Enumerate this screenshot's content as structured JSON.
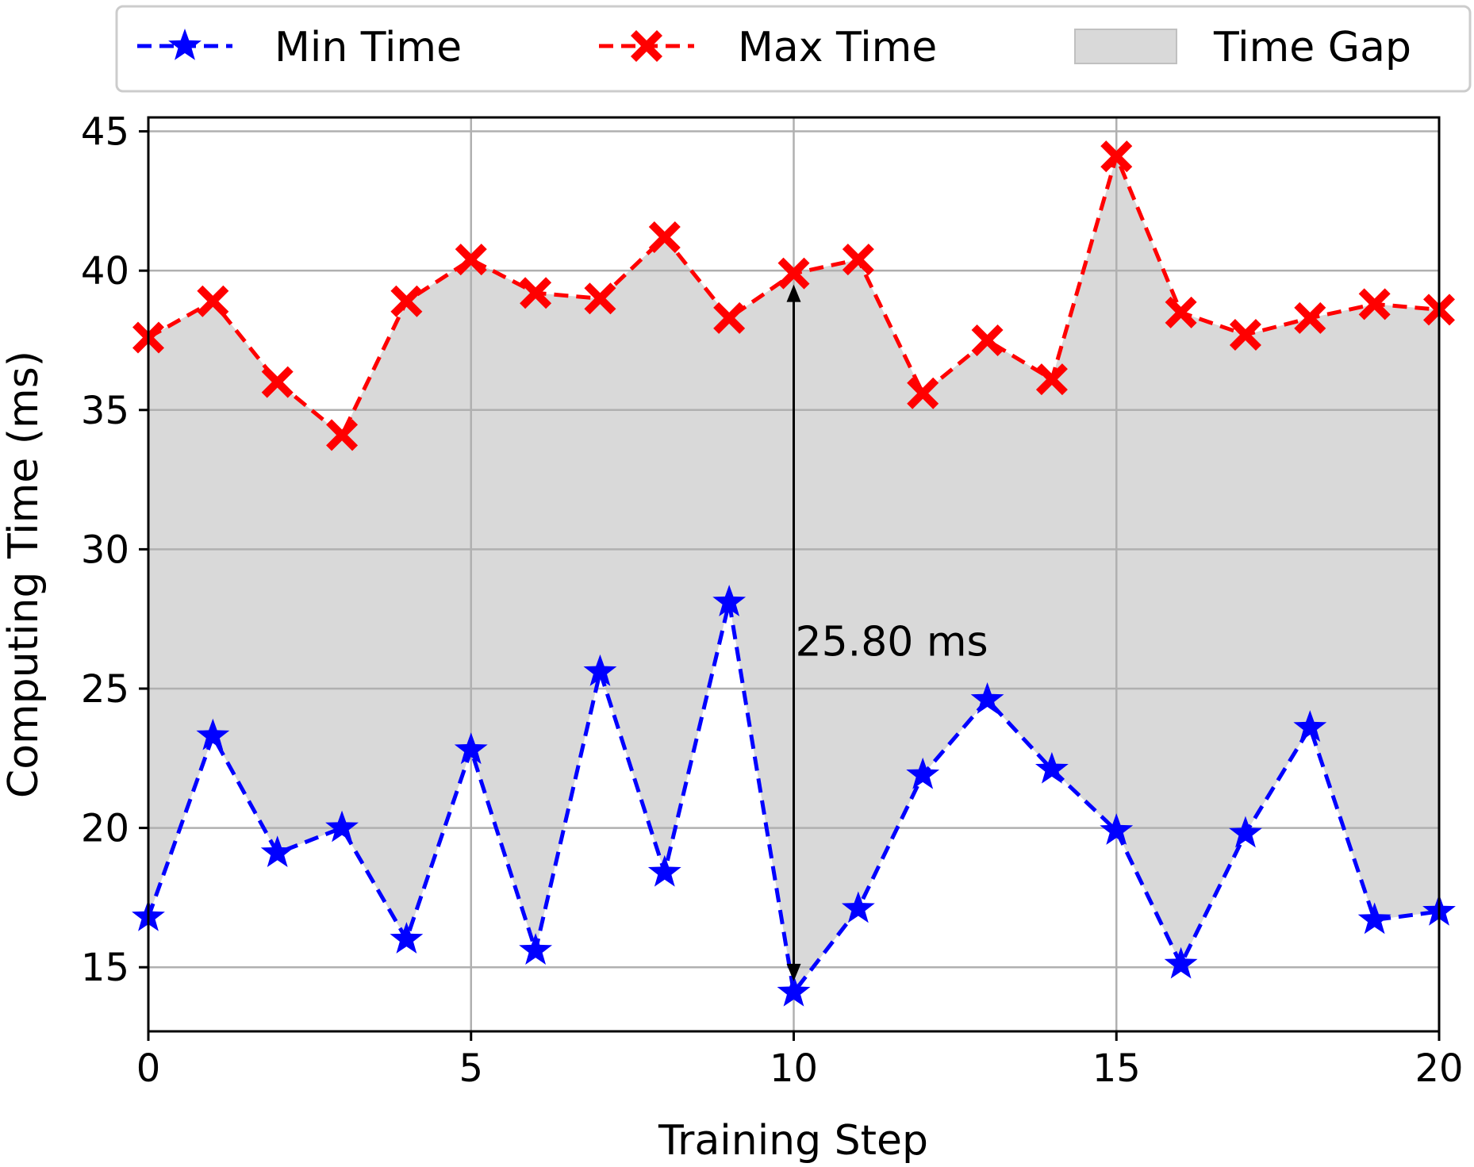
{
  "chart_data": {
    "type": "line",
    "title": "",
    "xlabel": "Training Step",
    "ylabel": "Computing Time (ms)",
    "xlim": [
      0,
      20
    ],
    "ylim": [
      12.7,
      45.5
    ],
    "xticks": [
      0,
      5,
      10,
      15,
      20
    ],
    "yticks": [
      15,
      20,
      25,
      30,
      35,
      40,
      45
    ],
    "grid": true,
    "legend_position": "top",
    "x": [
      0,
      1,
      2,
      3,
      4,
      5,
      6,
      7,
      8,
      9,
      10,
      11,
      12,
      13,
      14,
      15,
      16,
      17,
      18,
      19,
      20
    ],
    "series": [
      {
        "name": "Min Time",
        "color": "#0000ff",
        "marker": "star",
        "line_style": "dashed",
        "values": [
          16.8,
          23.3,
          19.1,
          20.0,
          16.0,
          22.8,
          15.6,
          25.6,
          18.4,
          28.1,
          14.1,
          17.1,
          21.9,
          24.6,
          22.1,
          19.9,
          15.1,
          19.8,
          23.6,
          16.7,
          17.0
        ]
      },
      {
        "name": "Max Time",
        "color": "#ff0000",
        "marker": "x",
        "line_style": "dashed",
        "values": [
          37.6,
          38.9,
          36.0,
          34.1,
          38.9,
          40.4,
          39.2,
          39.0,
          41.2,
          38.3,
          39.9,
          40.4,
          35.6,
          37.5,
          36.1,
          44.1,
          38.5,
          37.7,
          38.3,
          38.8,
          38.6
        ]
      }
    ],
    "fill": {
      "name": "Time Gap",
      "color": "#d9d9d9",
      "between": [
        "Min Time",
        "Max Time"
      ]
    },
    "annotations": [
      {
        "text": "25.80 ms",
        "type": "double-arrow",
        "x": 10,
        "y_from": 14.1,
        "y_to": 39.9
      }
    ]
  }
}
